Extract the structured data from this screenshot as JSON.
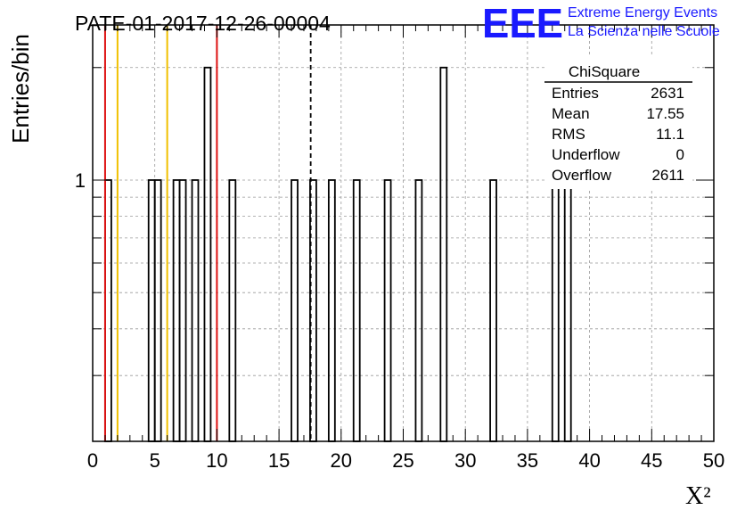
{
  "chart_data": {
    "type": "bar",
    "title": "PATE-01-2017-12-26-00004",
    "xlabel": "X²",
    "ylabel": "Entries/bin",
    "xlim": [
      0,
      50
    ],
    "ylim": [
      0.2,
      2.6
    ],
    "ylog": true,
    "bin_width": 0.5,
    "x_ticks": [
      "0",
      "5",
      "10",
      "15",
      "20",
      "25",
      "30",
      "35",
      "40",
      "45",
      "50"
    ],
    "y_ticks": [
      "1"
    ],
    "grid": true,
    "bins": [
      {
        "x": 1.0,
        "y": 1
      },
      {
        "x": 4.5,
        "y": 1
      },
      {
        "x": 5.0,
        "y": 1
      },
      {
        "x": 6.5,
        "y": 1
      },
      {
        "x": 7.0,
        "y": 1
      },
      {
        "x": 8.0,
        "y": 1
      },
      {
        "x": 9.0,
        "y": 2
      },
      {
        "x": 11.0,
        "y": 1
      },
      {
        "x": 16.0,
        "y": 1
      },
      {
        "x": 17.5,
        "y": 1
      },
      {
        "x": 19.0,
        "y": 1
      },
      {
        "x": 21.0,
        "y": 1
      },
      {
        "x": 23.5,
        "y": 1
      },
      {
        "x": 26.0,
        "y": 1
      },
      {
        "x": 28.0,
        "y": 2
      },
      {
        "x": 32.0,
        "y": 1
      },
      {
        "x": 37.0,
        "y": 1
      },
      {
        "x": 38.0,
        "y": 1
      }
    ],
    "vertical_lines": [
      {
        "x": 1.0,
        "color": "#dd1111",
        "style": "solid"
      },
      {
        "x": 2.0,
        "color": "#f0c000",
        "style": "solid"
      },
      {
        "x": 6.0,
        "color": "#f0c000",
        "style": "solid"
      },
      {
        "x": 10.0,
        "color": "#dd1111",
        "style": "solid"
      },
      {
        "x": 17.55,
        "color": "#000000",
        "style": "dashed"
      }
    ]
  },
  "stats_box": {
    "title": "ChiSquare",
    "rows": [
      {
        "label": "Entries",
        "value": "2631"
      },
      {
        "label": "Mean",
        "value": "17.55"
      },
      {
        "label": "RMS",
        "value": "11.1"
      },
      {
        "label": "Underflow",
        "value": "0"
      },
      {
        "label": "Overflow",
        "value": "2611"
      }
    ]
  },
  "logo": {
    "text": "EEE",
    "line1": "Extreme Energy Events",
    "line2": "La Scienza nelle Scuole",
    "color": "#1a1aff"
  }
}
